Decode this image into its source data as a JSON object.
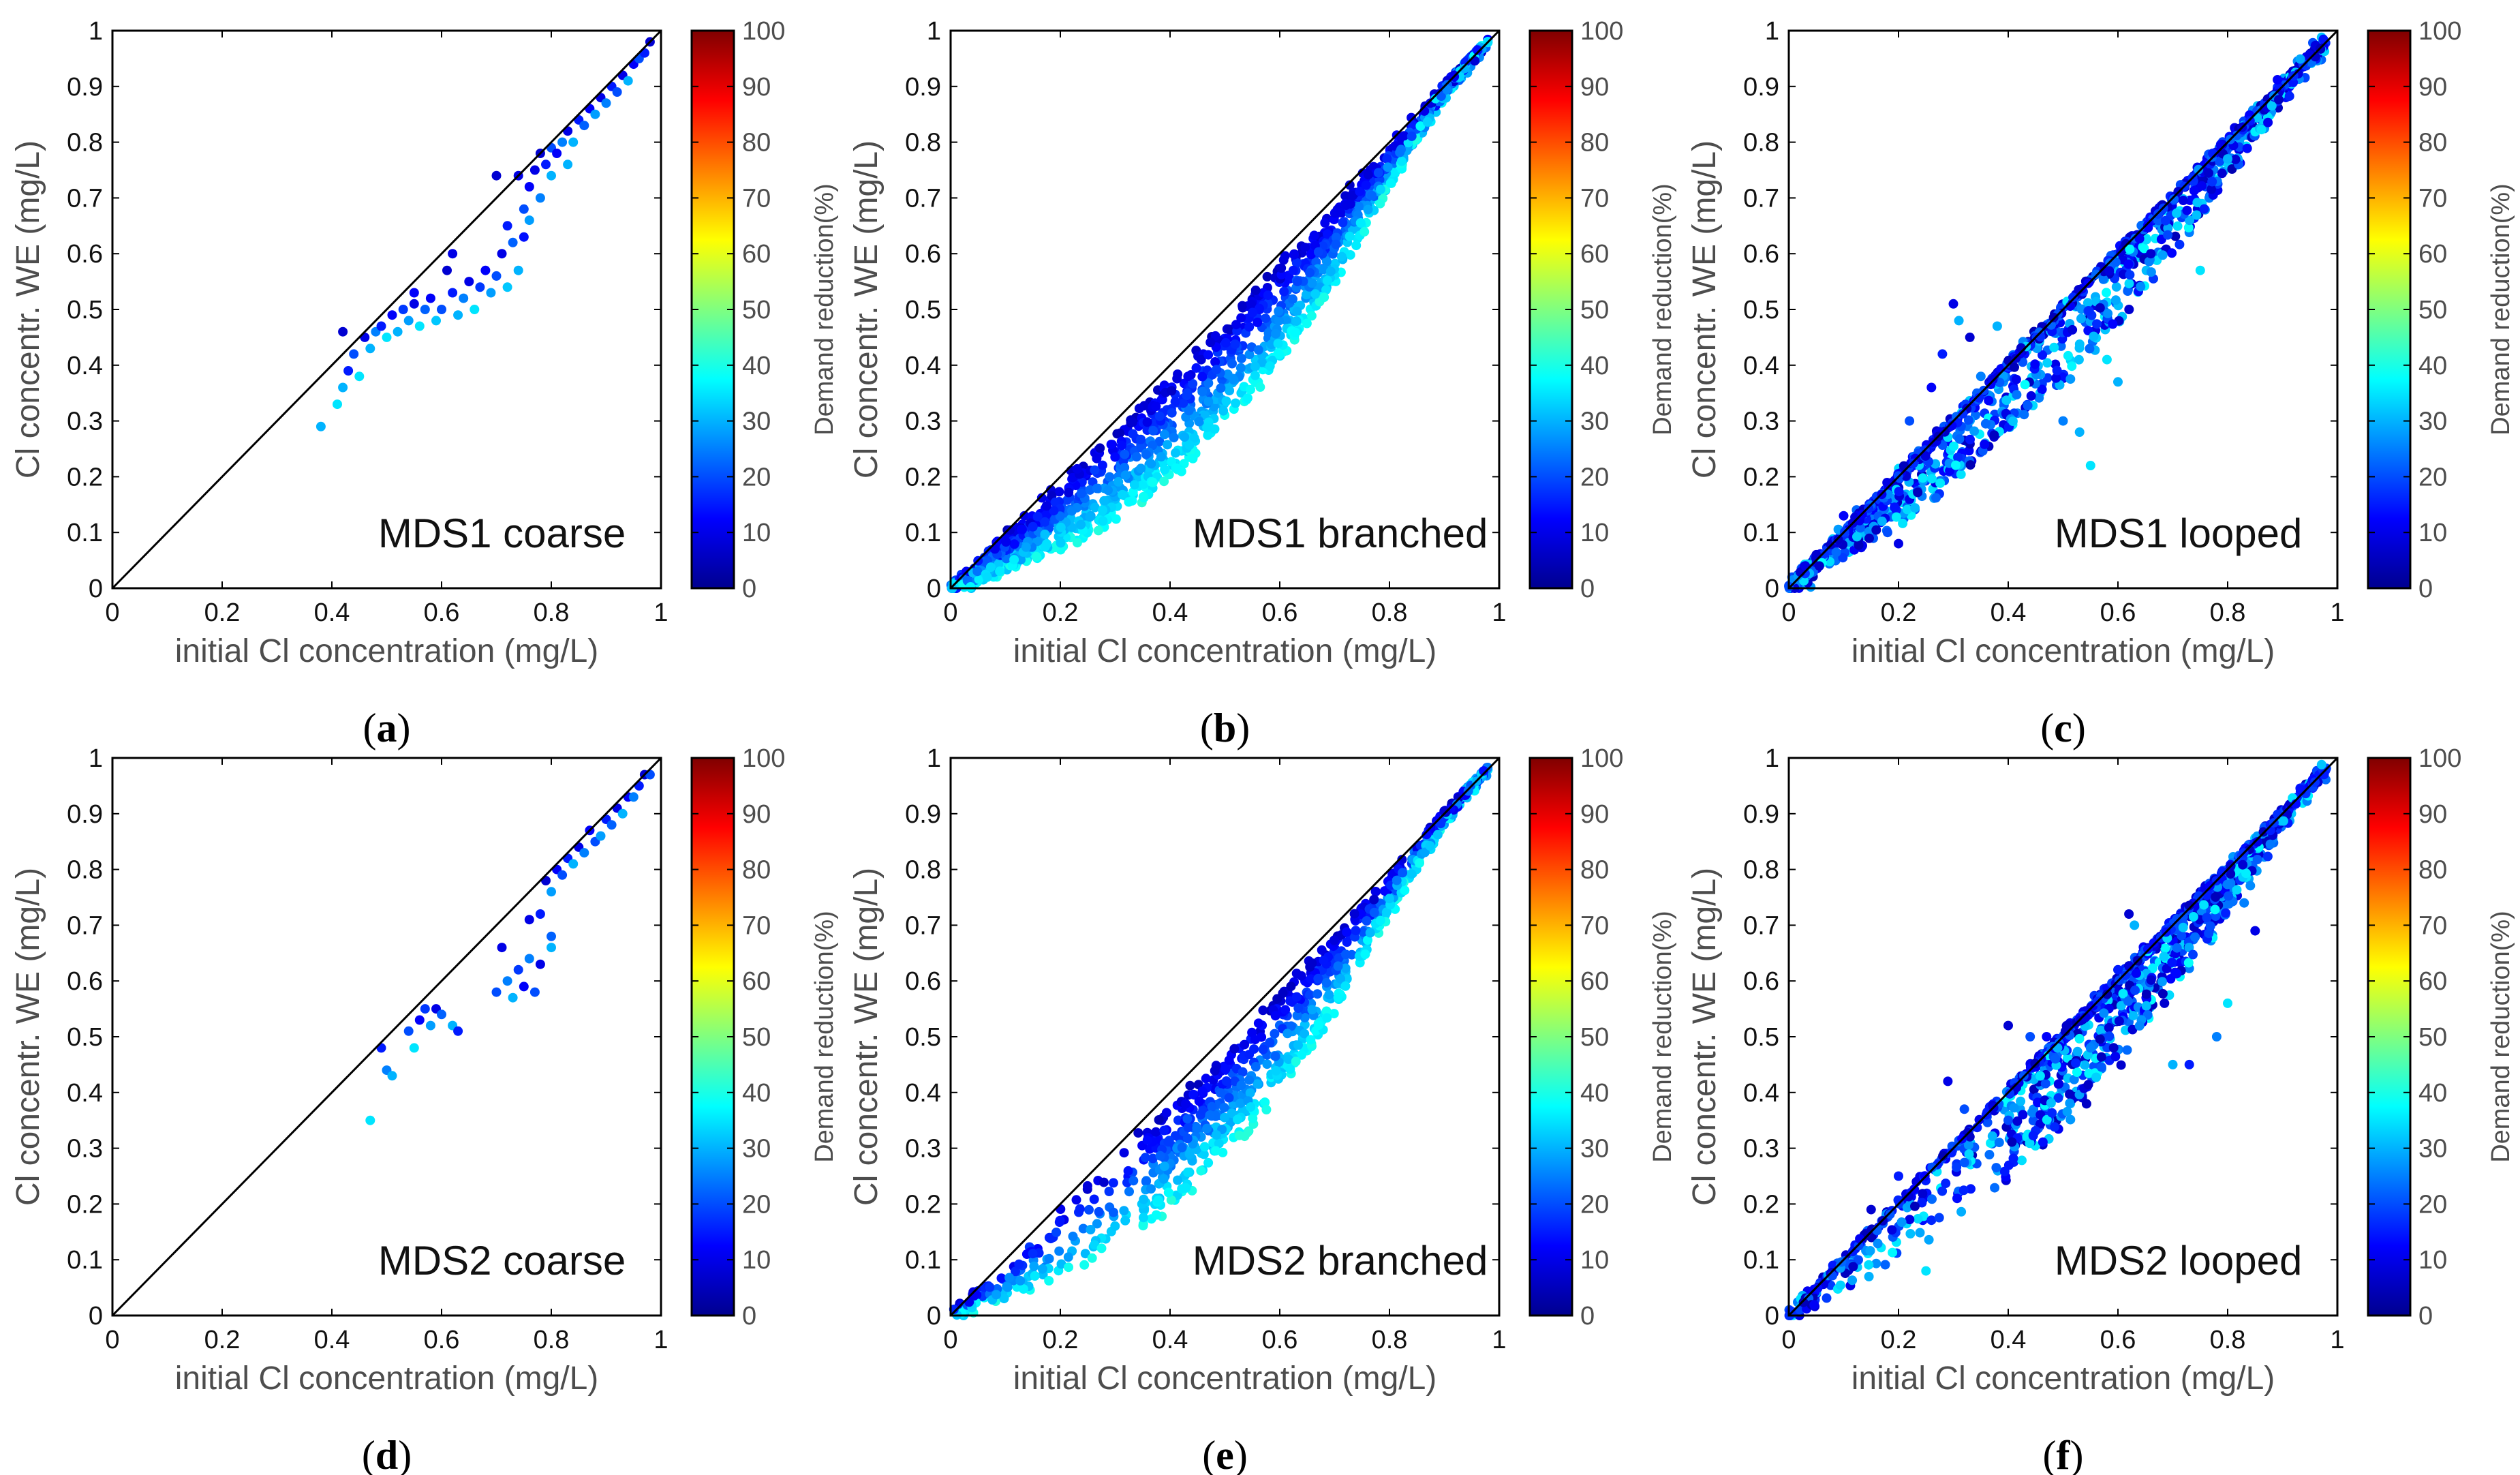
{
  "figure": {
    "colorbar": {
      "label": "Demand reduction(%)",
      "ticks": [
        "100",
        "90",
        "80",
        "70",
        "60",
        "50",
        "40",
        "30",
        "20",
        "10",
        "0"
      ],
      "min": 0,
      "max": 100,
      "colormap": "jet"
    },
    "colors": {
      "background": "#ffffff",
      "frame": "#000000",
      "diagonal": "#000000",
      "label_gray": "#4d4d4d"
    }
  },
  "chart_data": [
    {
      "type": "scatter",
      "panel_label": "a",
      "title": "MDS1 coarse",
      "xlabel": "initial Cl concentration (mg/L)",
      "ylabel": "Cl concentr. WE (mg/L)",
      "xlim": [
        0,
        1
      ],
      "ylim": [
        0,
        1
      ],
      "xticks": [
        "0",
        "0.2",
        "0.4",
        "0.6",
        "0.8",
        "1"
      ],
      "yticks": [
        "0",
        "0.1",
        "0.2",
        "0.3",
        "0.4",
        "0.5",
        "0.6",
        "0.7",
        "0.8",
        "0.9",
        "1"
      ],
      "diagonal": [
        [
          0,
          0
        ],
        [
          1,
          1
        ]
      ],
      "points_description": "sparse cloud from x≈0.38 to 0.98; plateau near y≈0.45–0.55 for x 0.45–0.75, rising to y≈0.98 at x≈0.98",
      "points": [
        [
          0.38,
          0.29,
          30
        ],
        [
          0.41,
          0.33,
          35
        ],
        [
          0.42,
          0.36,
          30
        ],
        [
          0.43,
          0.39,
          15
        ],
        [
          0.42,
          0.46,
          8
        ],
        [
          0.44,
          0.42,
          20
        ],
        [
          0.45,
          0.38,
          35
        ],
        [
          0.46,
          0.45,
          10
        ],
        [
          0.47,
          0.43,
          30
        ],
        [
          0.48,
          0.46,
          25
        ],
        [
          0.49,
          0.47,
          15
        ],
        [
          0.5,
          0.45,
          35
        ],
        [
          0.51,
          0.49,
          12
        ],
        [
          0.52,
          0.46,
          30
        ],
        [
          0.53,
          0.5,
          18
        ],
        [
          0.54,
          0.48,
          28
        ],
        [
          0.55,
          0.51,
          10
        ],
        [
          0.56,
          0.47,
          35
        ],
        [
          0.57,
          0.5,
          22
        ],
        [
          0.58,
          0.52,
          12
        ],
        [
          0.59,
          0.48,
          32
        ],
        [
          0.6,
          0.5,
          20
        ],
        [
          0.61,
          0.57,
          8
        ],
        [
          0.62,
          0.53,
          15
        ],
        [
          0.63,
          0.49,
          30
        ],
        [
          0.64,
          0.52,
          25
        ],
        [
          0.65,
          0.55,
          10
        ],
        [
          0.66,
          0.5,
          35
        ],
        [
          0.67,
          0.54,
          18
        ],
        [
          0.68,
          0.57,
          12
        ],
        [
          0.69,
          0.53,
          28
        ],
        [
          0.7,
          0.56,
          20
        ],
        [
          0.71,
          0.6,
          10
        ],
        [
          0.72,
          0.54,
          32
        ],
        [
          0.72,
          0.65,
          15
        ],
        [
          0.73,
          0.62,
          22
        ],
        [
          0.74,
          0.57,
          30
        ],
        [
          0.75,
          0.63,
          14
        ],
        [
          0.75,
          0.68,
          20
        ],
        [
          0.76,
          0.72,
          12
        ],
        [
          0.76,
          0.66,
          28
        ],
        [
          0.77,
          0.75,
          10
        ],
        [
          0.78,
          0.7,
          25
        ],
        [
          0.78,
          0.78,
          8
        ],
        [
          0.79,
          0.76,
          15
        ],
        [
          0.8,
          0.79,
          20
        ],
        [
          0.8,
          0.74,
          30
        ],
        [
          0.81,
          0.78,
          12
        ],
        [
          0.82,
          0.8,
          25
        ],
        [
          0.83,
          0.82,
          10
        ],
        [
          0.84,
          0.8,
          30
        ],
        [
          0.85,
          0.84,
          15
        ],
        [
          0.86,
          0.83,
          22
        ],
        [
          0.87,
          0.86,
          12
        ],
        [
          0.88,
          0.85,
          28
        ],
        [
          0.89,
          0.88,
          10
        ],
        [
          0.9,
          0.87,
          25
        ],
        [
          0.91,
          0.9,
          15
        ],
        [
          0.92,
          0.89,
          20
        ],
        [
          0.93,
          0.92,
          10
        ],
        [
          0.94,
          0.91,
          30
        ],
        [
          0.95,
          0.94,
          12
        ],
        [
          0.96,
          0.95,
          20
        ],
        [
          0.97,
          0.96,
          15
        ],
        [
          0.98,
          0.98,
          8
        ],
        [
          0.62,
          0.6,
          10
        ],
        [
          0.7,
          0.74,
          8
        ],
        [
          0.74,
          0.74,
          10
        ],
        [
          0.55,
          0.53,
          12
        ],
        [
          0.83,
          0.76,
          30
        ]
      ]
    },
    {
      "type": "scatter",
      "panel_label": "b",
      "title": "MDS1 branched",
      "xlabel": "initial Cl concentration (mg/L)",
      "ylabel": "Cl concentr. WE (mg/L)",
      "xlim": [
        0,
        1
      ],
      "ylim": [
        0,
        1
      ],
      "xticks": [
        "0",
        "0.2",
        "0.4",
        "0.6",
        "0.8",
        "1"
      ],
      "yticks": [
        "0",
        "0.1",
        "0.2",
        "0.3",
        "0.4",
        "0.5",
        "0.6",
        "0.7",
        "0.8",
        "0.9",
        "1"
      ],
      "diagonal": [
        [
          0,
          0
        ],
        [
          1,
          1
        ]
      ],
      "points_description": "dense S-shaped cloud below the diagonal from x≈0 to 0.98, widest near x 0.4–0.8; dark blue near diagonal, cyan further below"
    },
    {
      "type": "scatter",
      "panel_label": "c",
      "title": "MDS1 looped",
      "xlabel": "initial Cl concentration (mg/L)",
      "ylabel": "Cl concentr. WE (mg/L)",
      "xlim": [
        0,
        1
      ],
      "ylim": [
        0,
        1
      ],
      "xticks": [
        "0",
        "0.2",
        "0.4",
        "0.6",
        "0.8",
        "1"
      ],
      "yticks": [
        "0",
        "0.1",
        "0.2",
        "0.3",
        "0.4",
        "0.5",
        "0.6",
        "0.7",
        "0.8",
        "0.9",
        "1"
      ],
      "diagonal": [
        [
          0,
          0
        ],
        [
          1,
          1
        ]
      ],
      "points_description": "dense cloud around the diagonal from x≈0 to 0.98, with scattered points above the diagonal near x 0.25–0.45 and below it near x 0.5–0.75"
    },
    {
      "type": "scatter",
      "panel_label": "d",
      "title": "MDS2 coarse",
      "xlabel": "initial Cl concentration (mg/L)",
      "ylabel": "Cl concentr. WE (mg/L)",
      "xlim": [
        0,
        1
      ],
      "ylim": [
        0,
        1
      ],
      "xticks": [
        "0",
        "0.2",
        "0.4",
        "0.6",
        "0.8",
        "1"
      ],
      "yticks": [
        "0",
        "0.1",
        "0.2",
        "0.3",
        "0.4",
        "0.5",
        "0.6",
        "0.7",
        "0.8",
        "0.9",
        "1"
      ],
      "diagonal": [
        [
          0,
          0
        ],
        [
          1,
          1
        ]
      ],
      "points": [
        [
          0.47,
          0.35,
          35
        ],
        [
          0.49,
          0.48,
          15
        ],
        [
          0.5,
          0.44,
          25
        ],
        [
          0.51,
          0.43,
          30
        ],
        [
          0.54,
          0.51,
          20
        ],
        [
          0.55,
          0.48,
          35
        ],
        [
          0.56,
          0.53,
          12
        ],
        [
          0.57,
          0.55,
          18
        ],
        [
          0.58,
          0.52,
          28
        ],
        [
          0.59,
          0.55,
          10
        ],
        [
          0.6,
          0.54,
          22
        ],
        [
          0.62,
          0.52,
          30
        ],
        [
          0.63,
          0.51,
          15
        ],
        [
          0.7,
          0.58,
          20
        ],
        [
          0.71,
          0.66,
          10
        ],
        [
          0.72,
          0.6,
          25
        ],
        [
          0.73,
          0.57,
          30
        ],
        [
          0.74,
          0.62,
          18
        ],
        [
          0.75,
          0.59,
          12
        ],
        [
          0.76,
          0.64,
          25
        ],
        [
          0.77,
          0.58,
          20
        ],
        [
          0.78,
          0.63,
          10
        ],
        [
          0.78,
          0.72,
          15
        ],
        [
          0.79,
          0.78,
          8
        ],
        [
          0.8,
          0.68,
          22
        ],
        [
          0.8,
          0.76,
          28
        ],
        [
          0.81,
          0.8,
          12
        ],
        [
          0.82,
          0.79,
          20
        ],
        [
          0.83,
          0.82,
          15
        ],
        [
          0.84,
          0.81,
          30
        ],
        [
          0.85,
          0.84,
          10
        ],
        [
          0.86,
          0.83,
          25
        ],
        [
          0.87,
          0.87,
          12
        ],
        [
          0.88,
          0.85,
          20
        ],
        [
          0.89,
          0.86,
          28
        ],
        [
          0.9,
          0.89,
          15
        ],
        [
          0.91,
          0.88,
          22
        ],
        [
          0.92,
          0.91,
          10
        ],
        [
          0.93,
          0.9,
          30
        ],
        [
          0.94,
          0.93,
          12
        ],
        [
          0.95,
          0.93,
          25
        ],
        [
          0.96,
          0.95,
          15
        ],
        [
          0.97,
          0.97,
          8
        ],
        [
          0.98,
          0.97,
          20
        ],
        [
          0.8,
          0.66,
          30
        ],
        [
          0.76,
          0.71,
          10
        ]
      ]
    },
    {
      "type": "scatter",
      "panel_label": "e",
      "title": "MDS2 branched",
      "xlabel": "initial Cl concentration (mg/L)",
      "ylabel": "Cl concentr. WE (mg/L)",
      "xlim": [
        0,
        1
      ],
      "ylim": [
        0,
        1
      ],
      "xticks": [
        "0",
        "0.2",
        "0.4",
        "0.6",
        "0.8",
        "1"
      ],
      "yticks": [
        "0",
        "0.1",
        "0.2",
        "0.3",
        "0.4",
        "0.5",
        "0.6",
        "0.7",
        "0.8",
        "0.9",
        "1"
      ],
      "diagonal": [
        [
          0,
          0
        ],
        [
          1,
          1
        ]
      ],
      "points_description": "S-shaped cloud below the diagonal from x≈0 to 0.98, sparse below x 0.3, dense from x 0.4 to 0.95"
    },
    {
      "type": "scatter",
      "panel_label": "f",
      "title": "MDS2 looped",
      "xlabel": "initial Cl concentration (mg/L)",
      "ylabel": "Cl concentr. WE (mg/L)",
      "xlim": [
        0,
        1
      ],
      "ylim": [
        0,
        1
      ],
      "xticks": [
        "0",
        "0.2",
        "0.4",
        "0.6",
        "0.8",
        "1"
      ],
      "yticks": [
        "0",
        "0.1",
        "0.2",
        "0.3",
        "0.4",
        "0.5",
        "0.6",
        "0.7",
        "0.8",
        "0.9",
        "1"
      ],
      "diagonal": [
        [
          0,
          0
        ],
        [
          1,
          1
        ]
      ],
      "points_description": "points along the diagonal from 0 to 0.98 plus a dense cloud below it for x 0.4–0.85, scattered outliers above and below"
    }
  ]
}
